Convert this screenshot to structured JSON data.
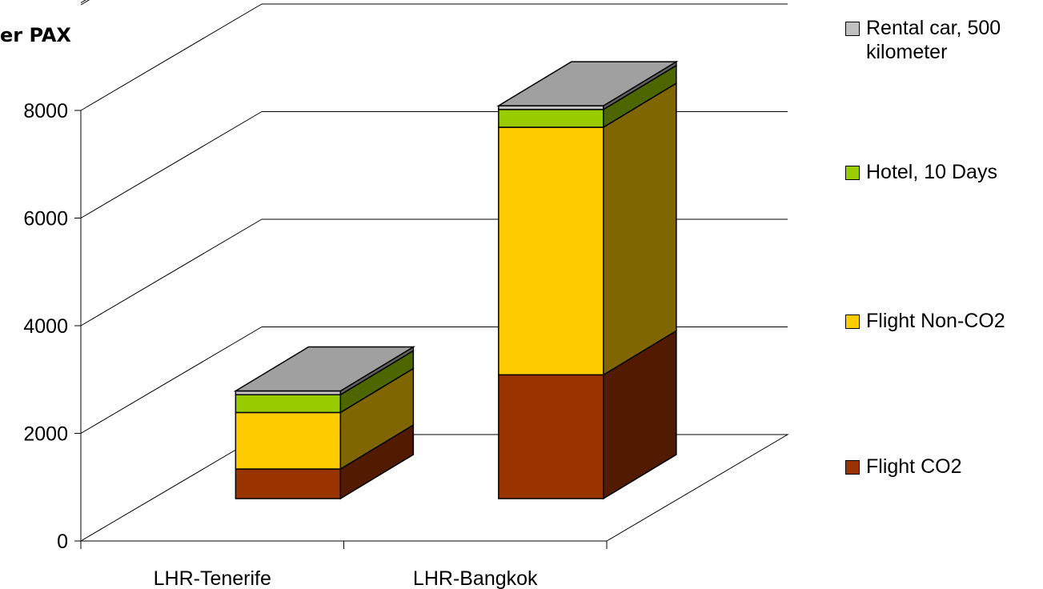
{
  "title_fragment": "er PAX",
  "chart_data": {
    "type": "bar",
    "stacked": true,
    "three_d": true,
    "categories": [
      "LHR-Tenerife",
      "LHR-Bangkok"
    ],
    "series": [
      {
        "name": "Flight CO2",
        "values": [
          550,
          2300
        ],
        "color": "#993300",
        "side_color": "#521b00"
      },
      {
        "name": "Flight Non-CO2",
        "values": [
          1050,
          4600
        ],
        "color": "#ffcc00",
        "side_color": "#806600"
      },
      {
        "name": "Hotel, 10 Days",
        "values": [
          330,
          330
        ],
        "color": "#99cc00",
        "side_color": "#4d6600"
      },
      {
        "name": "Rental car, 500 kilometer",
        "values": [
          70,
          70
        ],
        "color": "#c0c0c0",
        "side_color": "#606060",
        "top_color": "#a0a0a0"
      }
    ],
    "y_ticks": [
      0,
      2000,
      4000,
      6000,
      8000
    ],
    "ylim": [
      0,
      8000
    ],
    "grid": true,
    "legend_position": "right"
  }
}
